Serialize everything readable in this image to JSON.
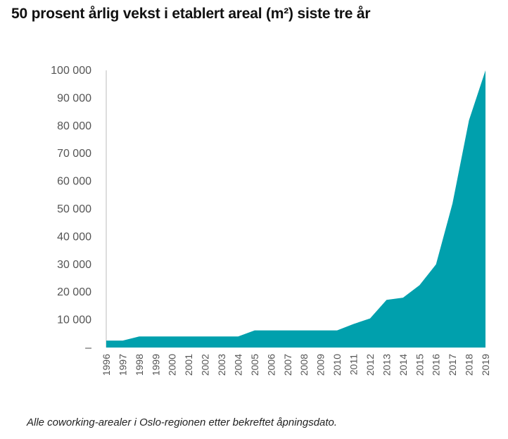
{
  "title": "50 prosent årlig vekst i etablert areal (m²) siste tre år",
  "caption": "Alle coworking-arealer i Oslo-regionen etter bekreftet åpningsdato.",
  "colors": {
    "area": "#00a0ad",
    "axis": "#bbbbbb",
    "text": "#555555"
  },
  "chart_data": {
    "type": "area",
    "title": "50 prosent årlig vekst i etablert areal (m²) siste tre år",
    "xlabel": "",
    "ylabel": "",
    "ylim": [
      0,
      100000
    ],
    "yticks": [
      0,
      10000,
      20000,
      30000,
      40000,
      50000,
      60000,
      70000,
      80000,
      90000,
      100000
    ],
    "ytick_labels": [
      "–",
      "10 000",
      "20 000",
      "30 000",
      "40 000",
      "50 000",
      "60 000",
      "70 000",
      "80 000",
      "90 000",
      "100 000"
    ],
    "categories": [
      "1996",
      "1997",
      "1998",
      "1999",
      "2000",
      "2001",
      "2002",
      "2003",
      "2004",
      "2005",
      "2006",
      "2007",
      "2008",
      "2009",
      "2010",
      "2011",
      "2012",
      "2013",
      "2014",
      "2015",
      "2016",
      "2017",
      "2018",
      "2019"
    ],
    "series": [
      {
        "name": "Etablert areal (m²)",
        "values": [
          2500,
          2500,
          4000,
          4000,
          4000,
          4000,
          4000,
          4000,
          4000,
          6200,
          6200,
          6200,
          6200,
          6200,
          6200,
          8500,
          10500,
          17200,
          18000,
          22500,
          30000,
          52000,
          82000,
          100000
        ]
      }
    ]
  }
}
